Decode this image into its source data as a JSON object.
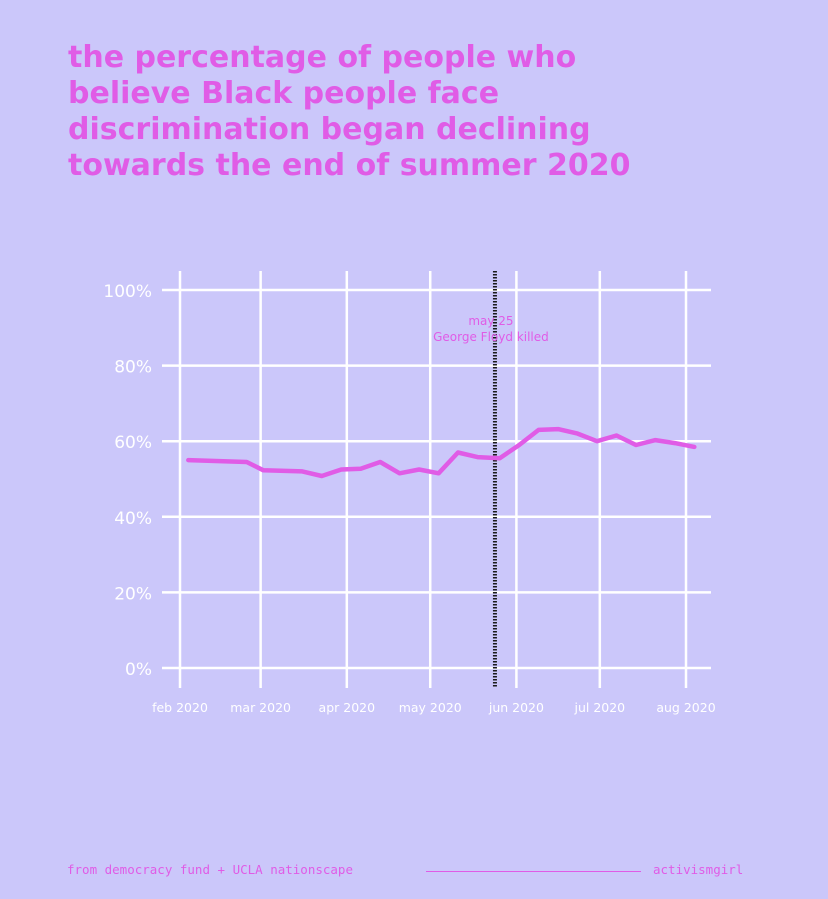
{
  "title_lines": [
    "the percentage of people who",
    "believe Black people face",
    "discrimination began declining",
    "towards the end of summer 2020"
  ],
  "colors": {
    "background": "#cbc7fa",
    "accent": "#e05ce6",
    "grid": "#ffffff",
    "event_line": "#1a1a1a"
  },
  "chart_data": {
    "type": "line",
    "title": "the percentage of people who believe Black people face discrimination began declining towards the end of summer 2020",
    "xlabel": "",
    "ylabel": "",
    "x_ticks": [
      "feb 2020",
      "mar 2020",
      "apr 2020",
      "may 2020",
      "jun 2020",
      "jul 2020",
      "aug 2020"
    ],
    "y_ticks": [
      "0%",
      "20%",
      "40%",
      "60%",
      "80%",
      "100%"
    ],
    "ylim": [
      0,
      100
    ],
    "xlim": [
      "2020-02-01",
      "2020-08-01"
    ],
    "grid": true,
    "series": [
      {
        "name": "",
        "points": [
          {
            "x": "2020-02-04",
            "y": 55.0
          },
          {
            "x": "2020-02-25",
            "y": 54.5
          },
          {
            "x": "2020-03-02",
            "y": 52.3
          },
          {
            "x": "2020-03-16",
            "y": 52.0
          },
          {
            "x": "2020-03-23",
            "y": 50.8
          },
          {
            "x": "2020-03-30",
            "y": 52.5
          },
          {
            "x": "2020-04-06",
            "y": 52.7
          },
          {
            "x": "2020-04-13",
            "y": 54.5
          },
          {
            "x": "2020-04-20",
            "y": 51.5
          },
          {
            "x": "2020-04-27",
            "y": 52.5
          },
          {
            "x": "2020-05-04",
            "y": 51.5
          },
          {
            "x": "2020-05-11",
            "y": 57.0
          },
          {
            "x": "2020-05-18",
            "y": 55.8
          },
          {
            "x": "2020-05-26",
            "y": 55.5
          },
          {
            "x": "2020-06-02",
            "y": 59.0
          },
          {
            "x": "2020-06-09",
            "y": 63.0
          },
          {
            "x": "2020-06-16",
            "y": 63.2
          },
          {
            "x": "2020-06-23",
            "y": 62.0
          },
          {
            "x": "2020-06-30",
            "y": 60.0
          },
          {
            "x": "2020-07-07",
            "y": 61.5
          },
          {
            "x": "2020-07-14",
            "y": 59.0
          },
          {
            "x": "2020-07-21",
            "y": 60.3
          },
          {
            "x": "2020-07-28",
            "y": 59.5
          },
          {
            "x": "2020-08-04",
            "y": 58.5
          }
        ]
      }
    ],
    "annotations": [
      {
        "x": "2020-05-25",
        "lines": [
          "may 25",
          "George Floyd killed"
        ]
      }
    ]
  },
  "footer": {
    "source": "from democracy fund + UCLA nationscape",
    "handle": "activismgirl"
  }
}
